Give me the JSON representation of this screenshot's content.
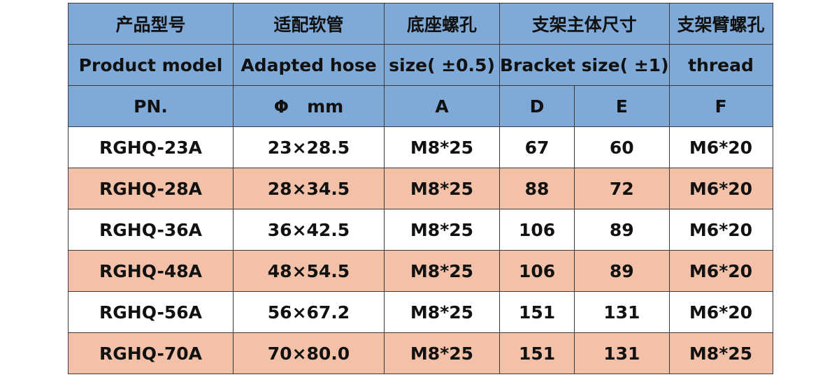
{
  "table": {
    "header_cn": [
      "产品型号",
      "适配软管",
      "底座螺孔",
      "支架主体尺寸",
      "支架臂螺孔"
    ],
    "header_en": [
      "Product model",
      "Adapted hose",
      "size( ±0.5)",
      "Bracket size( ±1)",
      "thread"
    ],
    "header_sym": [
      "PN.",
      "Φ   mm",
      "A",
      "D",
      "E",
      "F"
    ],
    "rows": [
      [
        "RGHQ-23A",
        "23×28.5",
        "M8*25",
        "67",
        "60",
        "M6*20"
      ],
      [
        "RGHQ-28A",
        "28×34.5",
        "M8*25",
        "88",
        "72",
        "M6*20"
      ],
      [
        "RGHQ-36A",
        "36×42.5",
        "M8*25",
        "106",
        "89",
        "M6*20"
      ],
      [
        "RGHQ-48A",
        "48×54.5",
        "M8*25",
        "106",
        "89",
        "M6*20"
      ],
      [
        "RGHQ-56A",
        "56×67.2",
        "M8*25",
        "151",
        "131",
        "M6*20"
      ],
      [
        "RGHQ-70A",
        "70×80.0",
        "M8*25",
        "151",
        "131",
        "M8*25"
      ]
    ],
    "colors": {
      "header_bg": "#7faad8",
      "stripe_bg": "#f3c1a7",
      "plain_bg": "#ffffff",
      "border": "#3a3a3a"
    }
  }
}
